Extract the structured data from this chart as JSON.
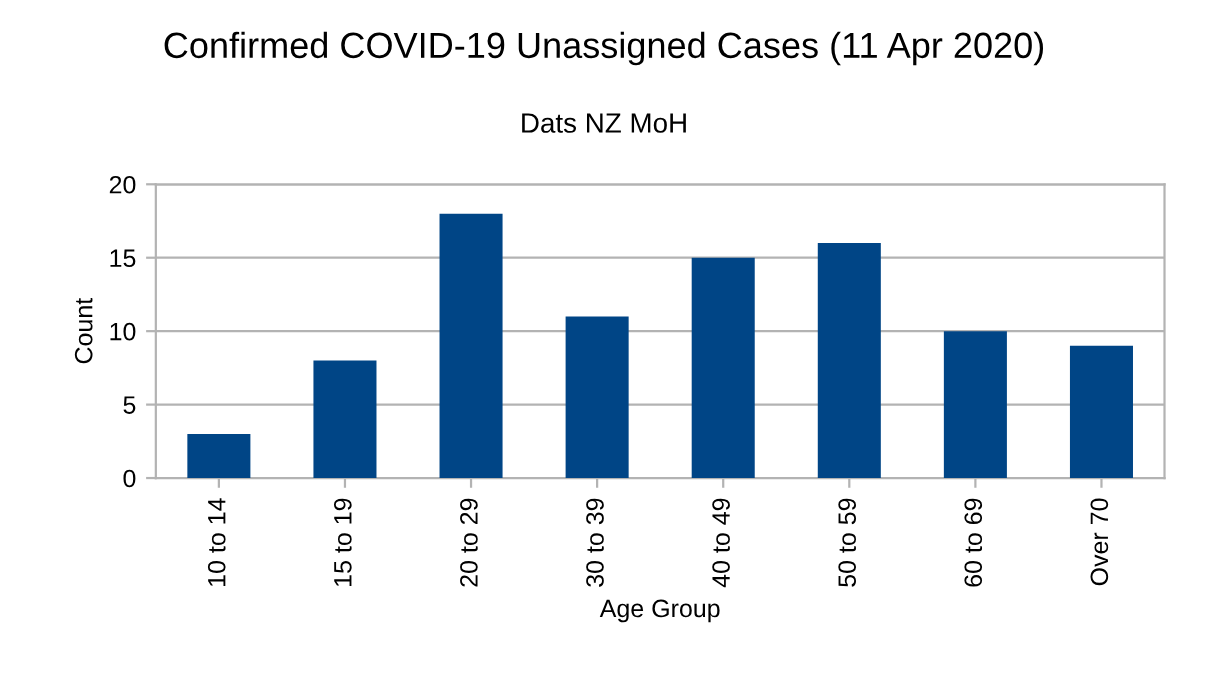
{
  "chart_data": {
    "type": "bar",
    "title": "Confirmed COVID-19 Unassigned Cases (11 Apr 2020)",
    "subtitle": "Dats NZ MoH",
    "xlabel": "Age Group",
    "ylabel": "Count",
    "categories": [
      "10 to 14",
      "15 to 19",
      "20 to 29",
      "30 to 39",
      "40 to 49",
      "50 to 59",
      "60 to 69",
      "Over 70"
    ],
    "values": [
      3,
      8,
      18,
      11,
      15,
      16,
      10,
      9
    ],
    "color": "#004586",
    "ylim": [
      0,
      20
    ],
    "yticks": [
      0,
      5,
      10,
      15,
      20
    ],
    "grid": "y"
  }
}
